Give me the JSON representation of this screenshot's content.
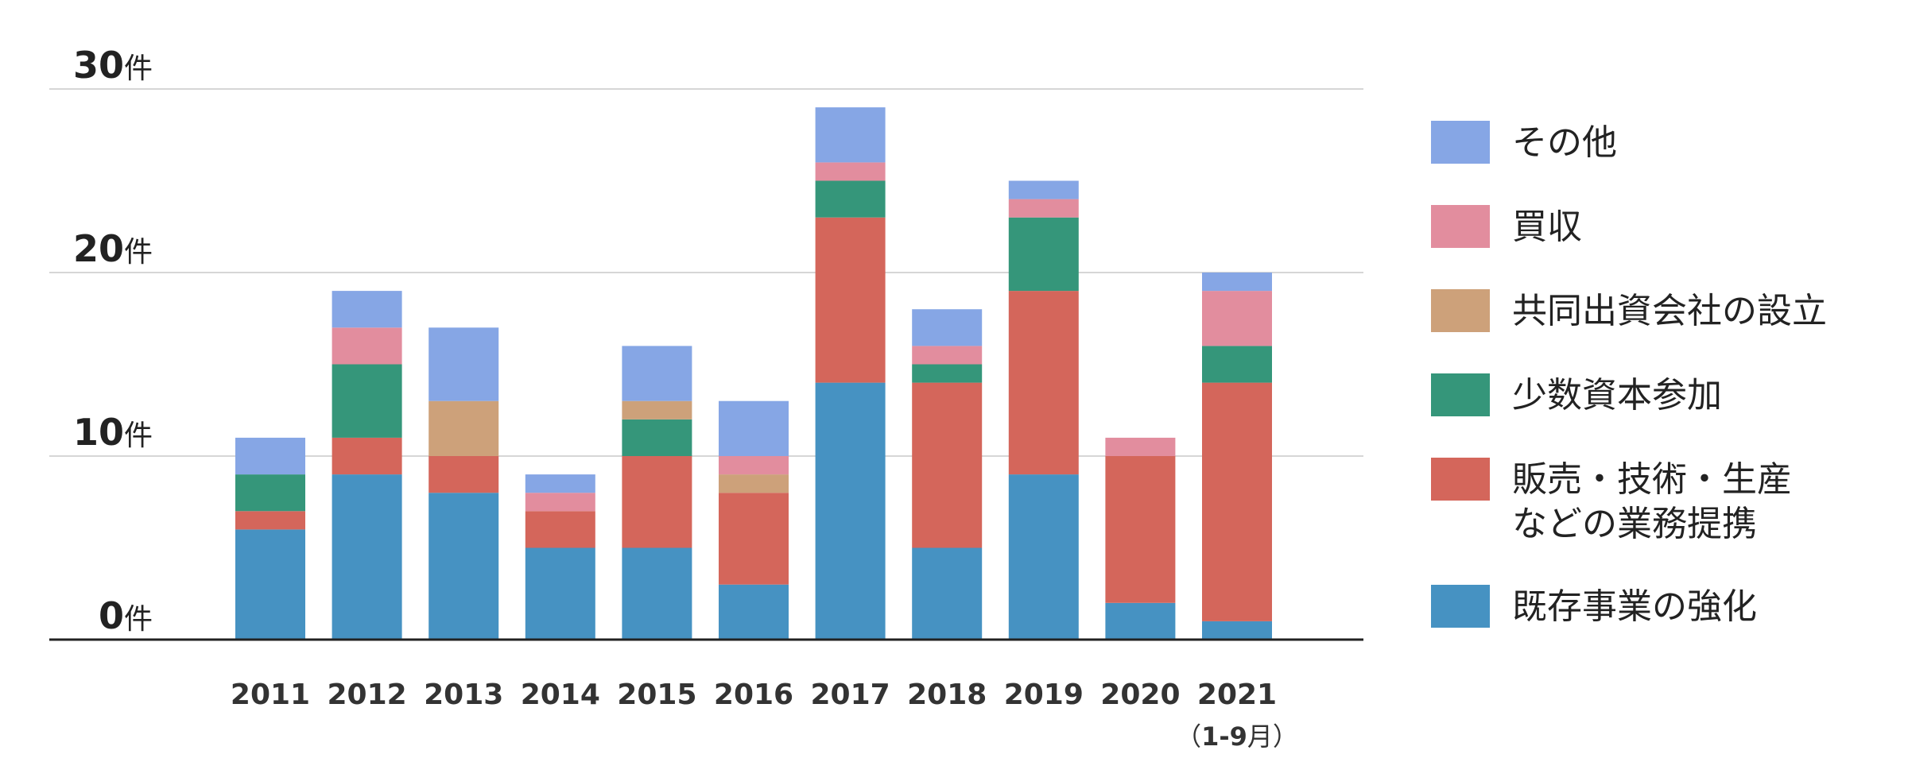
{
  "chart_data": {
    "type": "bar",
    "stacked": true,
    "categories": [
      "2011",
      "2012",
      "2013",
      "2014",
      "2015",
      "2016",
      "2017",
      "2018",
      "2019",
      "2020",
      "2021"
    ],
    "category_sublabels": {
      "2021": {
        "open": "（",
        "num": "1-9",
        "unit": "月",
        "close": "）"
      }
    },
    "y_ticks": [
      {
        "value": 0,
        "label": "0",
        "unit": "件"
      },
      {
        "value": 10,
        "label": "10",
        "unit": "件"
      },
      {
        "value": 20,
        "label": "20",
        "unit": "件"
      },
      {
        "value": 30,
        "label": "30",
        "unit": "件"
      }
    ],
    "ylim": [
      0,
      30
    ],
    "grid": true,
    "legend_position": "right",
    "series": [
      {
        "name": "既存事業の強化",
        "color": "#4692C2",
        "values": [
          6,
          9,
          8,
          5,
          5,
          3,
          14,
          5,
          9,
          2,
          1
        ]
      },
      {
        "name": "販売・技術・生産\nなどの業務提携",
        "color": "#D4665B",
        "values": [
          1,
          2,
          2,
          2,
          5,
          5,
          9,
          9,
          10,
          8,
          13
        ]
      },
      {
        "name": "少数資本参加",
        "color": "#35967A",
        "values": [
          2,
          4,
          0,
          0,
          2,
          0,
          2,
          1,
          4,
          0,
          2
        ]
      },
      {
        "name": "共同出資会社の設立",
        "color": "#CDA17A",
        "values": [
          0,
          0,
          3,
          0,
          1,
          1,
          0,
          0,
          0,
          0,
          0
        ]
      },
      {
        "name": "買収",
        "color": "#E28D9E",
        "values": [
          0,
          2,
          0,
          1,
          0,
          1,
          1,
          1,
          1,
          1,
          3
        ]
      },
      {
        "name": "その他",
        "color": "#86A6E5",
        "values": [
          2,
          2,
          4,
          1,
          3,
          3,
          3,
          2,
          1,
          0,
          1
        ]
      }
    ],
    "legend_order": [
      5,
      4,
      3,
      2,
      1,
      0
    ],
    "axis_color": "#222222",
    "grid_color": "#C8C8C8"
  }
}
